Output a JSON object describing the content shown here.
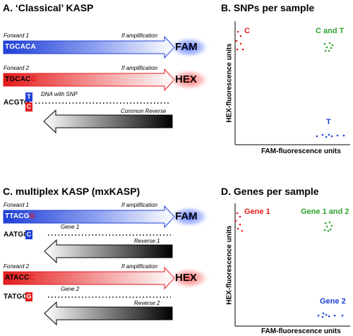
{
  "colors": {
    "fam_blue": "#1f3fd6",
    "hex_red": "#e31b1b",
    "green": "#2ea12e",
    "fam_glow": "#3a5cff",
    "hex_glow": "#ff4a4a"
  },
  "panel_a": {
    "title": "A. ‘Classical’ KASP",
    "forward1_label": "Forward 1",
    "forward1_seq": "TGCACA",
    "forward2_label": "Forward 2",
    "forward2_seq_main": "TGCAC",
    "forward2_seq_last": "G",
    "amp1_label": "If amplification",
    "amp2_label": "If amplification",
    "fam_label": "FAM",
    "hex_label": "HEX",
    "dna_seq": "ACGTG",
    "dna_snp_top": "T",
    "dna_snp_bottom": "C",
    "dna_label": "DNA with SNP",
    "reverse_label": "Common Reverse"
  },
  "panel_b": {
    "title": "B. SNPs per sample",
    "y_axis": "HEX-fluorescence units",
    "x_axis": "FAM-fluorescence units",
    "cluster_c": "C",
    "cluster_ct": "C and T",
    "cluster_t": "T"
  },
  "panel_c": {
    "title": "C. multiplex KASP (mxKASP)",
    "forward1_label": "Forward 1",
    "forward1_seq_main": "TTACG",
    "forward1_seq_last": "G",
    "amp1_label": "If amplification",
    "fam_label": "FAM",
    "gene1_seq": "AATGC",
    "gene1_snp": "C",
    "gene1_label": "Gene 1",
    "reverse1_label": "Reverse 1",
    "forward2_label": "Forward 2",
    "forward2_seq_main": "ATACC",
    "forward2_seq_last": "C",
    "amp2_label": "If amplification",
    "hex_label": "HEX",
    "gene2_seq": "TATGG",
    "gene2_snp": "G",
    "gene2_label": "Gene 2",
    "reverse2_label": "Reverse 2"
  },
  "panel_d": {
    "title": "D. Genes per sample",
    "y_axis": "HEX-fluorescence units",
    "x_axis": "FAM-fluorescence units",
    "cluster_g1": "Gene 1",
    "cluster_g12": "Gene 1 and 2",
    "cluster_g2": "Gene 2"
  }
}
